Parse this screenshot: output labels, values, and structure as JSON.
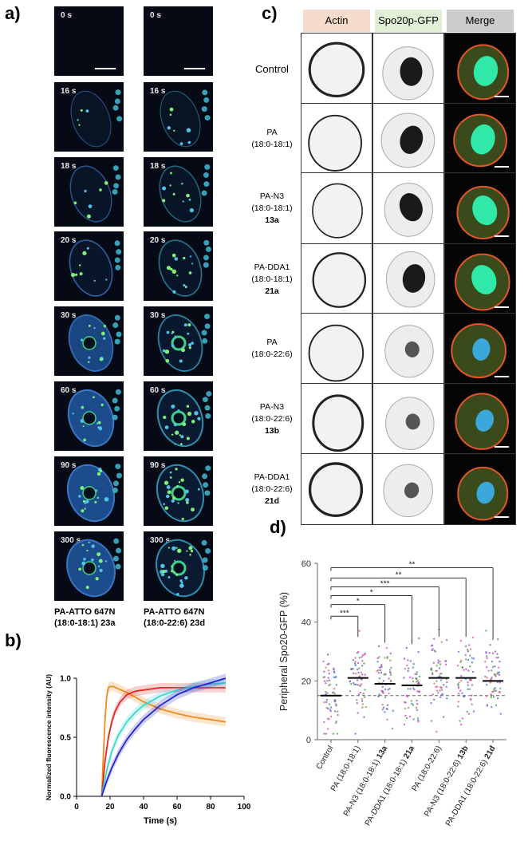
{
  "panel_a": {
    "letter": "a)",
    "times": [
      "0 s",
      "16 s",
      "18 s",
      "20 s",
      "30 s",
      "60 s",
      "90 s",
      "300 s"
    ],
    "captions": [
      {
        "line1": "PA-ATTO 647N",
        "line2": "(18:0-18:1) 23a"
      },
      {
        "line1": "PA-ATTO 647N",
        "line2": "(18:0-22:6) 23d"
      }
    ]
  },
  "panel_b": {
    "letter": "b)",
    "chart_data": {
      "type": "line",
      "xlabel": "Time (s)",
      "ylabel": "Normalized fluorescence intensity (AU)",
      "xlim": [
        0,
        100
      ],
      "ylim": [
        0,
        1.0
      ],
      "xticks": [
        "0",
        "20",
        "40",
        "60",
        "80",
        "100"
      ],
      "yticks": [
        "0.0",
        "0.5",
        "1.0"
      ],
      "series": [
        {
          "color": "#f08a1c",
          "x": [
            15,
            16,
            17,
            18,
            19,
            20,
            22,
            25,
            30,
            40,
            50,
            60,
            70,
            80,
            89
          ],
          "y": [
            0,
            0.35,
            0.65,
            0.85,
            0.92,
            0.93,
            0.93,
            0.91,
            0.88,
            0.8,
            0.74,
            0.7,
            0.67,
            0.65,
            0.63
          ]
        },
        {
          "color": "#e32727",
          "x": [
            15,
            17,
            19,
            21,
            23,
            26,
            30,
            35,
            40,
            50,
            60,
            70,
            80,
            89
          ],
          "y": [
            0,
            0.3,
            0.5,
            0.63,
            0.72,
            0.8,
            0.86,
            0.89,
            0.9,
            0.92,
            0.92,
            0.92,
            0.92,
            0.92
          ]
        },
        {
          "color": "#3fd6d0",
          "x": [
            15,
            18,
            21,
            25,
            30,
            35,
            40,
            50,
            60,
            70,
            80,
            89
          ],
          "y": [
            0,
            0.22,
            0.38,
            0.52,
            0.63,
            0.71,
            0.77,
            0.85,
            0.9,
            0.93,
            0.95,
            0.96
          ]
        },
        {
          "color": "#2424d6",
          "x": [
            15,
            18,
            21,
            25,
            30,
            35,
            40,
            50,
            60,
            70,
            80,
            89
          ],
          "y": [
            0,
            0.13,
            0.24,
            0.36,
            0.48,
            0.57,
            0.65,
            0.77,
            0.86,
            0.92,
            0.96,
            1.0
          ]
        }
      ]
    }
  },
  "panel_c": {
    "letter": "c)",
    "headers": [
      "Actin",
      "Spo20p-GFP",
      "Merge"
    ],
    "header_colors": [
      "#f6dccd",
      "#e0efd5",
      "#cccccc"
    ],
    "rows": [
      {
        "lines": [
          "Control"
        ]
      },
      {
        "lines": [
          "PA",
          "(18:0-18:1)"
        ]
      },
      {
        "lines": [
          "PA-N3",
          "(18:0-18:1)"
        ],
        "id": "13a"
      },
      {
        "lines": [
          "PA-DDA1",
          "(18:0-18:1)"
        ],
        "id": "21a"
      },
      {
        "lines": [
          "PA",
          "(18:0-22:6)"
        ]
      },
      {
        "lines": [
          "PA-N3",
          "(18:0-22:6)"
        ],
        "id": "13b"
      },
      {
        "lines": [
          "PA-DDA1",
          "(18:0-22:6)"
        ],
        "id": "21d"
      }
    ]
  },
  "panel_d": {
    "letter": "d)",
    "chart_data": {
      "type": "scatter",
      "ylabel": "Peripheral Spo20-GFP (%)",
      "ylim": [
        0,
        60
      ],
      "yticks": [
        "0",
        "20",
        "40",
        "60"
      ],
      "reference_line": 15,
      "categories": [
        {
          "label": "Control",
          "bold": ""
        },
        {
          "label": "PA (18:0-18:1)",
          "bold": ""
        },
        {
          "label": "PA-N3 (18:0-18:1) ",
          "bold": "13a"
        },
        {
          "label": "PA-DDA1 (18:0-18:1) ",
          "bold": "21a"
        },
        {
          "label": "PA (18:0-22:6)",
          "bold": ""
        },
        {
          "label": "PA-N3 (18:0-22:6) ",
          "bold": "13b"
        },
        {
          "label": "PA-DDA1 (18:0-22:6) ",
          "bold": "21d"
        }
      ],
      "means": [
        15,
        21,
        19,
        18.5,
        21,
        21,
        20
      ],
      "significance": [
        {
          "target": 1,
          "label": "***"
        },
        {
          "target": 2,
          "label": "*"
        },
        {
          "target": 3,
          "label": "*"
        },
        {
          "target": 4,
          "label": "***"
        },
        {
          "target": 5,
          "label": "**"
        },
        {
          "target": 6,
          "label": "**"
        }
      ]
    }
  }
}
